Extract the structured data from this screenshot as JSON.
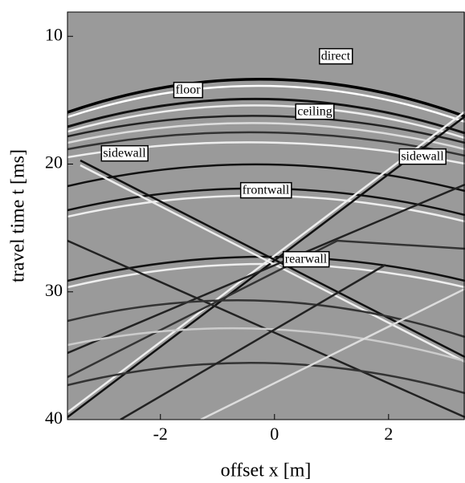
{
  "chart_data": {
    "type": "image",
    "xlabel": "offset x [m]",
    "ylabel": "travel time t [ms]",
    "xlim": [
      -3.63,
      3.34
    ],
    "xticks": [
      -2,
      0,
      2
    ],
    "ylim": [
      8.1,
      40
    ],
    "yticks": [
      10,
      20,
      30,
      40
    ],
    "y_inverted": true,
    "annotations": [
      "direct",
      "floor",
      "ceiling",
      "sidewall",
      "sidewall",
      "frontwall",
      "rearwall"
    ]
  }
}
